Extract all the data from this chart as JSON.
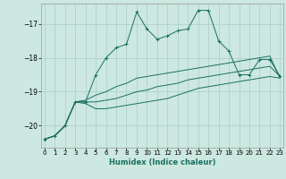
{
  "xlabel": "Humidex (Indice chaleur)",
  "bg_color": "#cce8e0",
  "grid_color": "#aacccc",
  "line_color": "#1a7060",
  "x_ticks": [
    0,
    1,
    2,
    3,
    4,
    5,
    6,
    7,
    8,
    9,
    10,
    11,
    12,
    13,
    14,
    15,
    16,
    17,
    18,
    19,
    20,
    21,
    22,
    23
  ],
  "y_ticks": [
    -20,
    -19,
    -18,
    -17
  ],
  "xlim": [
    -0.3,
    23.3
  ],
  "ylim": [
    -20.65,
    -16.4
  ],
  "line1_x": [
    0,
    1,
    2,
    3,
    4,
    5,
    6,
    7,
    8,
    9,
    10,
    11,
    12,
    13,
    14,
    15,
    16,
    17,
    18,
    19,
    20,
    21,
    22,
    23
  ],
  "line1_y": [
    -20.4,
    -20.3,
    -20.0,
    -19.3,
    -19.3,
    -18.5,
    -18.0,
    -17.7,
    -17.6,
    -16.65,
    -17.15,
    -17.45,
    -17.35,
    -17.2,
    -17.15,
    -16.6,
    -16.6,
    -17.5,
    -17.8,
    -18.5,
    -18.5,
    -18.05,
    -18.05,
    -18.55
  ],
  "line2_x": [
    0,
    1,
    2,
    3,
    4,
    5,
    6,
    7,
    8,
    9,
    10,
    11,
    12,
    13,
    14,
    15,
    16,
    17,
    18,
    19,
    20,
    21,
    22,
    23
  ],
  "line2_y": [
    -20.4,
    -20.3,
    -20.0,
    -19.3,
    -19.25,
    -19.1,
    -19.0,
    -18.85,
    -18.75,
    -18.6,
    -18.55,
    -18.5,
    -18.45,
    -18.4,
    -18.35,
    -18.3,
    -18.25,
    -18.2,
    -18.15,
    -18.1,
    -18.05,
    -18.0,
    -17.95,
    -18.6
  ],
  "line3_x": [
    0,
    1,
    2,
    3,
    4,
    5,
    6,
    7,
    8,
    9,
    10,
    11,
    12,
    13,
    14,
    15,
    16,
    17,
    18,
    19,
    20,
    21,
    22,
    23
  ],
  "line3_y": [
    -20.4,
    -20.3,
    -20.0,
    -19.3,
    -19.3,
    -19.3,
    -19.25,
    -19.2,
    -19.1,
    -19.0,
    -18.95,
    -18.85,
    -18.8,
    -18.75,
    -18.65,
    -18.6,
    -18.55,
    -18.5,
    -18.45,
    -18.4,
    -18.35,
    -18.3,
    -18.25,
    -18.55
  ],
  "line4_x": [
    0,
    1,
    2,
    3,
    4,
    5,
    6,
    7,
    8,
    9,
    10,
    11,
    12,
    13,
    14,
    15,
    16,
    17,
    18,
    19,
    20,
    21,
    22,
    23
  ],
  "line4_y": [
    -20.4,
    -20.3,
    -20.0,
    -19.3,
    -19.35,
    -19.5,
    -19.5,
    -19.45,
    -19.4,
    -19.35,
    -19.3,
    -19.25,
    -19.2,
    -19.1,
    -19.0,
    -18.9,
    -18.85,
    -18.8,
    -18.75,
    -18.7,
    -18.65,
    -18.6,
    -18.55,
    -18.6
  ]
}
